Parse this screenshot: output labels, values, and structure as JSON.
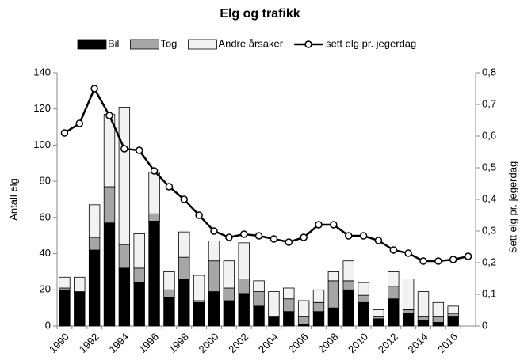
{
  "chart_data": {
    "type": "bar",
    "title": "Elg og trafikk",
    "categories": [
      "1990",
      null,
      "1992",
      null,
      "1994",
      null,
      "1996",
      null,
      "1998",
      null,
      "2000",
      null,
      "2002",
      null,
      "2004",
      null,
      "2006",
      null,
      "2008",
      null,
      "2010",
      null,
      "2012",
      null,
      "2014",
      null,
      "2016",
      null
    ],
    "series": [
      {
        "name": "Bil",
        "type": "bar",
        "color": "#000000",
        "values": [
          20,
          19,
          42,
          57,
          32,
          24,
          58,
          16,
          26,
          13,
          19,
          14,
          18,
          11,
          5,
          8,
          1,
          8,
          10,
          20,
          13,
          4,
          15,
          7,
          3,
          2,
          5,
          null
        ]
      },
      {
        "name": "Tog",
        "type": "bar",
        "color": "#a6a6a6",
        "values": [
          1,
          0,
          7,
          20,
          13,
          8,
          4,
          4,
          12,
          1,
          17,
          7,
          8,
          8,
          0,
          7,
          4,
          5,
          15,
          5,
          4,
          1,
          7,
          2,
          2,
          3,
          2,
          null
        ]
      },
      {
        "name": "Andre årsaker",
        "type": "bar",
        "color": "#f2f2f2",
        "values": [
          6,
          8,
          18,
          40,
          76,
          19,
          23,
          10,
          14,
          14,
          11,
          15,
          20,
          6,
          14,
          6,
          9,
          7,
          5,
          11,
          7,
          4,
          8,
          17,
          14,
          8,
          4,
          null
        ]
      },
      {
        "name": "sett elg pr. jegerdag",
        "type": "line",
        "axis": "y2",
        "color": "#000000",
        "values": [
          0.61,
          0.64,
          0.75,
          0.665,
          0.56,
          0.555,
          0.49,
          0.44,
          0.4,
          0.35,
          0.3,
          0.28,
          0.29,
          0.285,
          0.275,
          0.265,
          0.28,
          0.32,
          0.32,
          0.285,
          0.285,
          0.27,
          0.24,
          0.23,
          0.205,
          0.205,
          0.21,
          0.22
        ]
      }
    ],
    "y_label": "Antall elg",
    "y2_label": "Sett elg pr. jegerdag",
    "ylim": [
      0,
      140
    ],
    "yticks": [
      0,
      20,
      40,
      60,
      80,
      100,
      120,
      140
    ],
    "y2lim": [
      0,
      0.8
    ],
    "y2ticks": [
      0,
      {
        "value": 0.1,
        "label": "0,1"
      },
      {
        "value": 0.2,
        "label": "0,2"
      },
      {
        "value": 0.3,
        "label": "0,3"
      },
      {
        "value": 0.4,
        "label": "0,4"
      },
      {
        "value": 0.5,
        "label": "0,5"
      },
      {
        "value": 0.6,
        "label": "0,6"
      },
      {
        "value": 0.7,
        "label": "0,7"
      },
      {
        "value": 0.8,
        "label": "0,8"
      }
    ],
    "legend": "top",
    "grid": false
  }
}
